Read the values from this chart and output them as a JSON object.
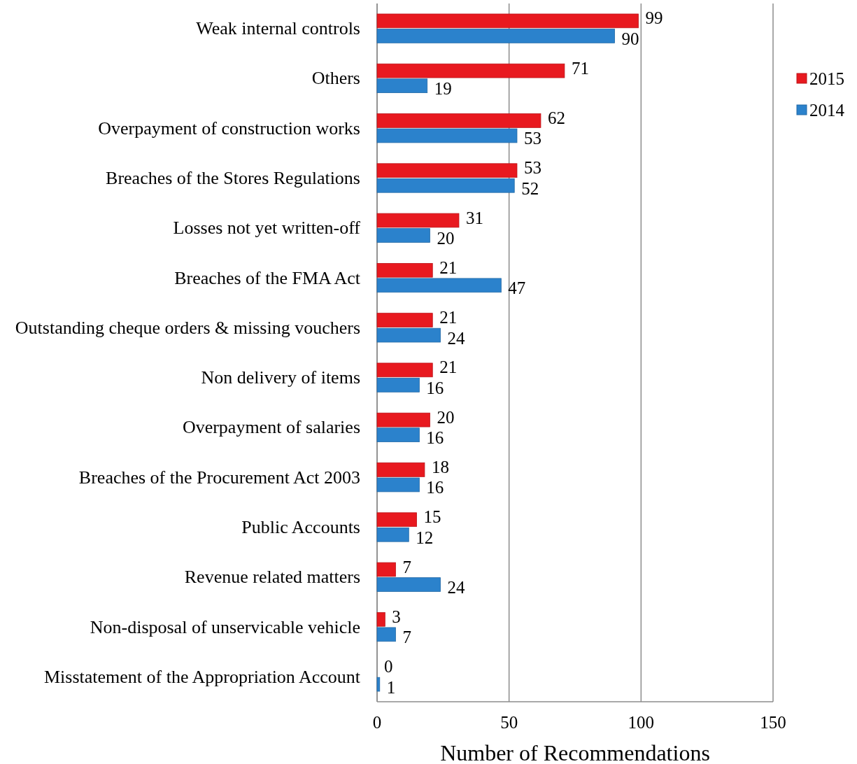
{
  "chart_data": {
    "type": "bar",
    "orientation": "horizontal",
    "xlabel": "Number of Recommendations",
    "categories": [
      "Weak internal controls",
      "Others",
      "Overpayment of construction works",
      "Breaches of the Stores Regulations",
      "Losses not yet written-off",
      "Breaches of the FMA Act",
      "Outstanding cheque orders & missing vouchers",
      "Non delivery of items",
      "Overpayment of salaries",
      "Breaches of the Procurement Act 2003",
      "Public Accounts",
      "Revenue related matters",
      "Non-disposal of unservicable vehicle",
      "Misstatement of the Appropriation Account"
    ],
    "series": [
      {
        "name": "2015",
        "color": "#e8191f",
        "values": [
          99,
          71,
          62,
          53,
          31,
          21,
          21,
          21,
          20,
          18,
          15,
          7,
          3,
          0
        ]
      },
      {
        "name": "2014",
        "color": "#2b82cc",
        "values": [
          90,
          19,
          53,
          52,
          20,
          47,
          24,
          16,
          16,
          16,
          12,
          24,
          7,
          1
        ]
      }
    ],
    "xlim": [
      0,
      150
    ],
    "xticks": [
      0,
      50,
      100,
      150
    ],
    "grid": "x",
    "legend": "top right",
    "data_labels": true
  }
}
